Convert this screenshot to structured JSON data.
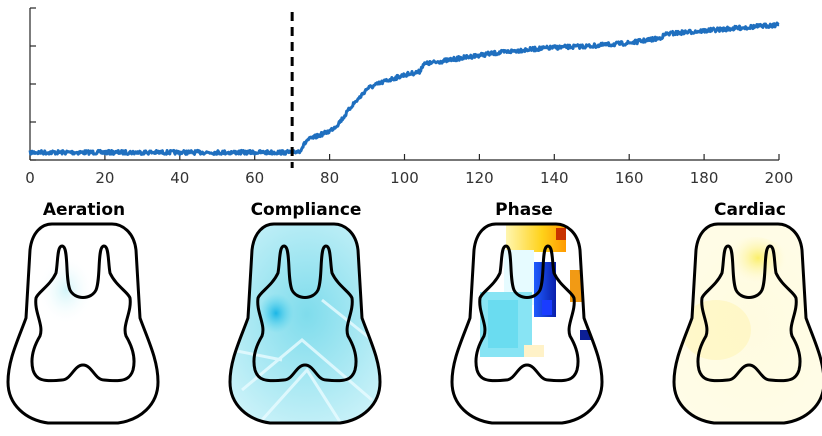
{
  "chart_data": [
    {
      "type": "line",
      "title": "",
      "xlabel": "",
      "ylabel": "",
      "xlim": [
        0,
        200
      ],
      "x_ticks": [
        0,
        20,
        40,
        60,
        80,
        100,
        120,
        140,
        160,
        180,
        200
      ],
      "y_tick_count": 5,
      "y_ticks_labeled": false,
      "grid": false,
      "legend": "none",
      "series": [
        {
          "color": "#1f6fbf",
          "x": [
            0,
            10,
            20,
            30,
            40,
            50,
            60,
            70,
            72,
            74,
            76,
            78,
            80,
            82,
            84,
            86,
            88,
            90,
            95,
            100,
            104,
            105,
            110,
            120,
            130,
            140,
            150,
            160,
            168,
            170,
            180,
            190,
            200
          ],
          "y": [
            0.05,
            0.05,
            0.05,
            0.05,
            0.05,
            0.05,
            0.05,
            0.05,
            0.06,
            0.13,
            0.15,
            0.17,
            0.19,
            0.23,
            0.29,
            0.36,
            0.41,
            0.47,
            0.52,
            0.56,
            0.58,
            0.63,
            0.65,
            0.69,
            0.72,
            0.74,
            0.75,
            0.77,
            0.8,
            0.83,
            0.85,
            0.87,
            0.89
          ]
        }
      ],
      "annotations": [
        {
          "type": "vertical-dashed-line",
          "x": 70,
          "color": "#000000"
        }
      ]
    },
    {
      "type": "heatmap",
      "panels": [
        {
          "title": "Aeration"
        },
        {
          "title": "Compliance"
        },
        {
          "title": "Phase"
        },
        {
          "title": "Cardiac"
        }
      ]
    }
  ]
}
